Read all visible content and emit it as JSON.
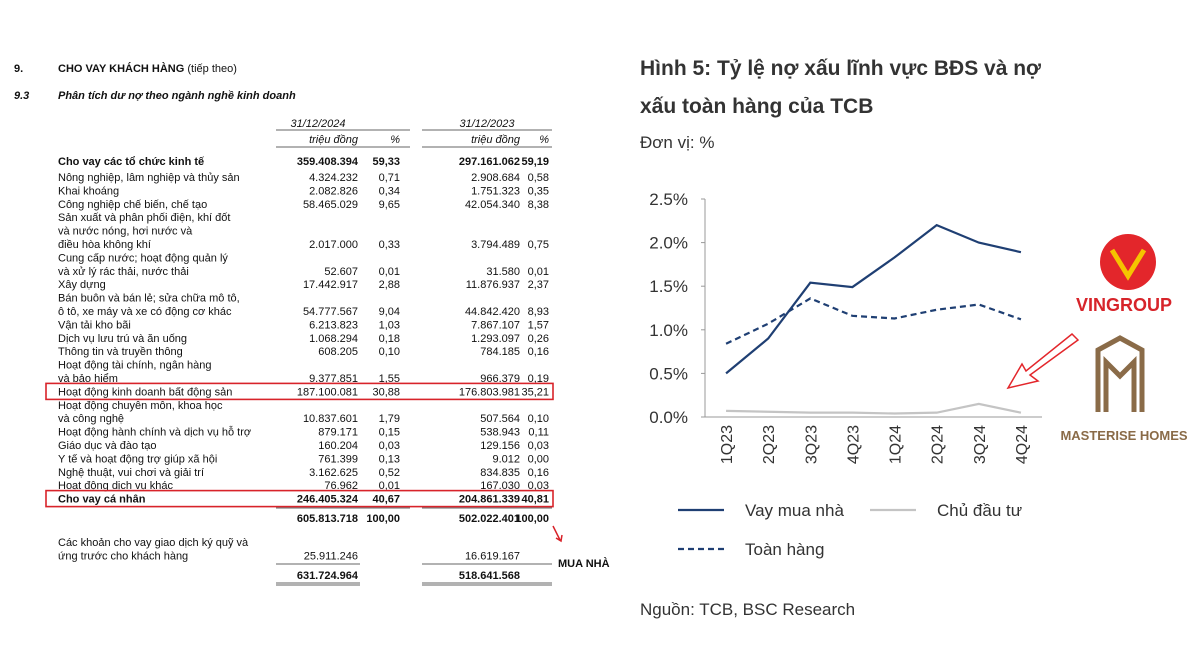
{
  "document": {
    "section_number": "9.",
    "section_title": "CHO VAY KHÁCH HÀNG",
    "section_note": "(tiếp theo)",
    "subsection_number": "9.3",
    "subsection_title": "Phân tích dư nợ theo ngành nghề kinh doanh",
    "table": {
      "headers": [
        "31/12/2024",
        "triệu đồng",
        "%",
        "31/12/2023",
        "triệu đồng",
        "%"
      ],
      "rows": [
        {
          "label": [
            "Cho vay các tổ chức kinh tế"
          ],
          "bold": true,
          "cells": [
            "359.408.394",
            "59,33",
            "297.161.062",
            "59,19"
          ]
        },
        {
          "label": [
            "Nông nghiệp, lâm nghiệp và thủy sản"
          ],
          "cells": [
            "4.324.232",
            "0,71",
            "2.908.684",
            "0,58"
          ]
        },
        {
          "label": [
            "Khai khoáng"
          ],
          "cells": [
            "2.082.826",
            "0,34",
            "1.751.323",
            "0,35"
          ]
        },
        {
          "label": [
            "Công nghiệp chế biến, chế tạo"
          ],
          "cells": [
            "58.465.029",
            "9,65",
            "42.054.340",
            "8,38"
          ]
        },
        {
          "label": [
            "Sản xuất và phân phối điện, khí đốt",
            "và nước nóng, hơi nước và",
            "điều hòa không khí"
          ],
          "cells": [
            "2.017.000",
            "0,33",
            "3.794.489",
            "0,75"
          ]
        },
        {
          "label": [
            "Cung cấp nước; hoạt động quản lý",
            "và xử lý rác thải, nước thải"
          ],
          "cells": [
            "52.607",
            "0,01",
            "31.580",
            "0,01"
          ]
        },
        {
          "label": [
            "Xây dựng"
          ],
          "cells": [
            "17.442.917",
            "2,88",
            "11.876.937",
            "2,37"
          ]
        },
        {
          "label": [
            "Bán buôn và bán lẻ; sửa chữa mô tô,",
            "ô tô, xe máy và xe có động cơ khác"
          ],
          "cells": [
            "54.777.567",
            "9,04",
            "44.842.420",
            "8,93"
          ]
        },
        {
          "label": [
            "Vận tải kho bãi"
          ],
          "cells": [
            "6.213.823",
            "1,03",
            "7.867.107",
            "1,57"
          ]
        },
        {
          "label": [
            "Dịch vụ lưu trú và ăn uống"
          ],
          "cells": [
            "1.068.294",
            "0,18",
            "1.293.097",
            "0,26"
          ]
        },
        {
          "label": [
            "Thông tin và truyền thông"
          ],
          "cells": [
            "608.205",
            "0,10",
            "784.185",
            "0,16"
          ]
        },
        {
          "label": [
            "Hoạt động tài chính, ngân hàng",
            "và bảo hiểm"
          ],
          "cells": [
            "9.377.851",
            "1,55",
            "966.379",
            "0,19"
          ]
        },
        {
          "label": [
            "Hoạt động kinh doanh bất động sản"
          ],
          "highlight": true,
          "cells": [
            "187.100.081",
            "30,88",
            "176.803.981",
            "35,21"
          ]
        },
        {
          "label": [
            "Hoạt động chuyên môn, khoa học",
            "và công nghệ"
          ],
          "cells": [
            "10.837.601",
            "1,79",
            "507.564",
            "0,10"
          ]
        },
        {
          "label": [
            "Hoạt động hành chính và dịch vụ hỗ trợ"
          ],
          "cells": [
            "879.171",
            "0,15",
            "538.943",
            "0,11"
          ]
        },
        {
          "label": [
            "Giáo dục và đào tạo"
          ],
          "cells": [
            "160.204",
            "0,03",
            "129.156",
            "0,03"
          ]
        },
        {
          "label": [
            "Y tế và hoạt động trợ giúp xã hội"
          ],
          "cells": [
            "761.399",
            "0,13",
            "9.012",
            "0,00"
          ]
        },
        {
          "label": [
            "Nghệ thuật, vui chơi và giải trí"
          ],
          "cells": [
            "3.162.625",
            "0,52",
            "834.835",
            "0,16"
          ]
        },
        {
          "label": [
            "Hoạt động dịch vụ khác"
          ],
          "cells": [
            "76.962",
            "0,01",
            "167.030",
            "0,03"
          ]
        },
        {
          "label": [
            "Cho vay cá nhân"
          ],
          "bold": true,
          "highlight": true,
          "cells": [
            "246.405.324",
            "40,67",
            "204.861.339",
            "40,81"
          ]
        }
      ],
      "subtotal": [
        "605.813.718",
        "100,00",
        "502.022.401",
        "100,00"
      ],
      "margin_row": {
        "label": [
          "Các khoản cho vay giao dịch ký quỹ và",
          "ứng trước cho khách hàng"
        ],
        "cells": [
          "25.911.246",
          "16.619.167"
        ]
      },
      "total": [
        "631.724.964",
        "518.641.568"
      ]
    },
    "annotation": "MUA NHÀ",
    "logos": [
      "VINGROUP",
      "MASTERISE HOMES"
    ]
  },
  "chart_data": {
    "type": "line",
    "title": [
      "Hình 5: Tỷ lệ nợ xấu lĩnh vực BĐS và nợ",
      "xấu toàn hàng của TCB"
    ],
    "subtitle": "Đơn vị: %",
    "source": "Nguồn: TCB, BSC Research",
    "categories": [
      "1Q23",
      "2Q23",
      "3Q23",
      "4Q23",
      "1Q24",
      "2Q24",
      "3Q24",
      "4Q24"
    ],
    "series": [
      {
        "name": "Vay mua nhà",
        "color": "#1f3f73",
        "dashed": false,
        "values": [
          0.5,
          0.9,
          1.54,
          1.49,
          1.83,
          2.2,
          2.0,
          1.89
        ]
      },
      {
        "name": "Chủ đầu tư",
        "color": "#c4c4c4",
        "dashed": false,
        "values": [
          0.07,
          0.06,
          0.05,
          0.05,
          0.04,
          0.05,
          0.15,
          0.05
        ]
      },
      {
        "name": "Toàn hàng",
        "color": "#1f3f73",
        "dashed": true,
        "values": [
          0.84,
          1.07,
          1.36,
          1.16,
          1.13,
          1.23,
          1.29,
          1.12
        ]
      }
    ],
    "ylim": [
      0,
      2.5
    ],
    "yticks": [
      {
        "value": 0,
        "label": "0.0%"
      },
      {
        "value": 0.5,
        "label": "0.5%"
      },
      {
        "value": 1,
        "label": "1.0%"
      },
      {
        "value": 1.5,
        "label": "1.5%"
      },
      {
        "value": 2,
        "label": "2.0%"
      },
      {
        "value": 2.5,
        "label": "2.5%"
      }
    ]
  }
}
